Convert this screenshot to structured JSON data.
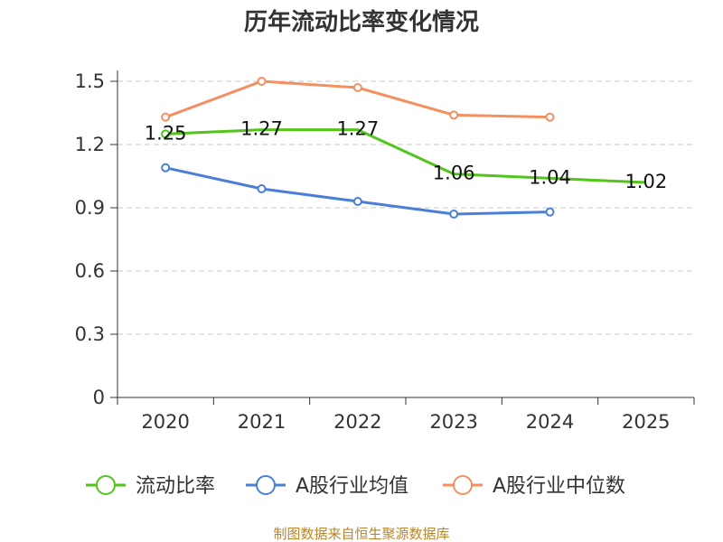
{
  "chart_data": {
    "type": "line",
    "title": "历年流动比率变化情况",
    "categories": [
      "2020",
      "2021",
      "2022",
      "2023",
      "2024",
      "2025"
    ],
    "y_ticks": [
      "0",
      "0.3",
      "0.6",
      "0.9",
      "1.2",
      "1.5"
    ],
    "ylim": [
      0,
      1.5
    ],
    "grid": true,
    "legend_position": "bottom",
    "series": [
      {
        "name": "流动比率",
        "color": "#52c41a",
        "values": [
          1.25,
          1.27,
          1.27,
          1.06,
          1.04,
          1.02
        ],
        "labels": [
          "1.25",
          "1.27",
          "1.27",
          "1.06",
          "1.04",
          "1.02"
        ],
        "markers": [
          true,
          false,
          false,
          false,
          false,
          false
        ]
      },
      {
        "name": "A股行业均值",
        "color": "#4a7fd8",
        "values": [
          1.09,
          0.99,
          0.93,
          0.87,
          0.88,
          null
        ],
        "markers": [
          true,
          true,
          true,
          true,
          true,
          false
        ]
      },
      {
        "name": "A股行业中位数",
        "color": "#f39060",
        "values": [
          1.33,
          1.5,
          1.47,
          1.34,
          1.33,
          null
        ],
        "markers": [
          true,
          true,
          true,
          true,
          true,
          false
        ]
      }
    ]
  },
  "source": "制图数据来自恒生聚源数据库"
}
